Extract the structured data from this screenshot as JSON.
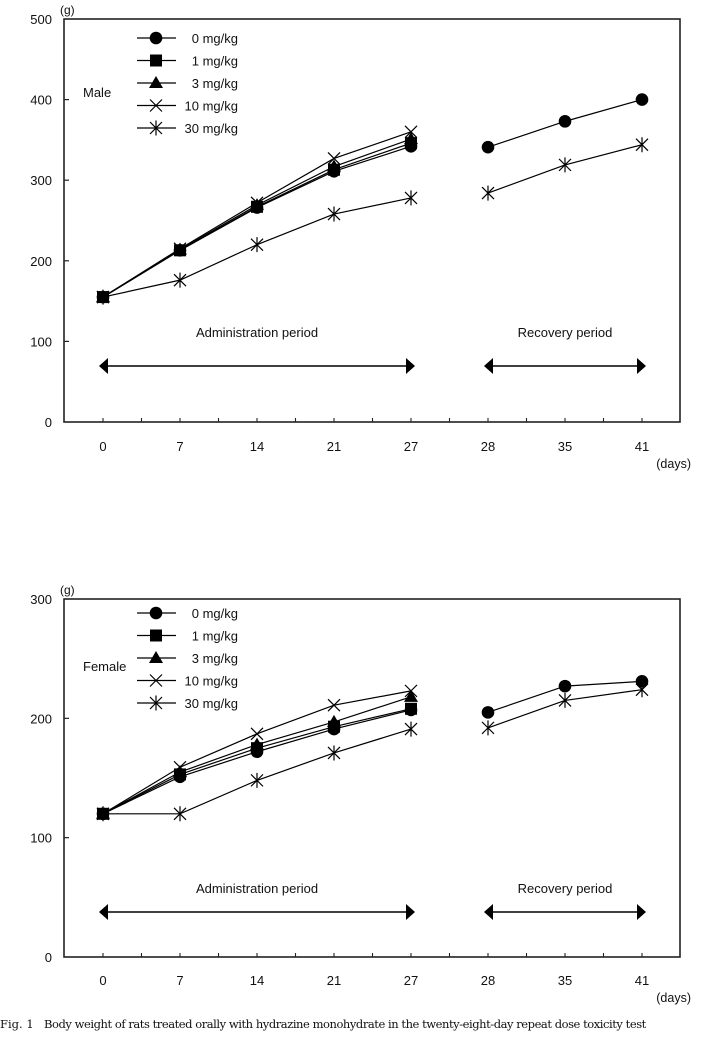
{
  "caption": {
    "label": "Fig. 1",
    "text": "Body weight of rats treated orally with hydrazine monohydrate in the twenty-eight-day repeat dose toxicity test"
  },
  "chart_data": [
    {
      "type": "line",
      "title": "Male",
      "ylabel": "(g)",
      "xlabel": "(days)",
      "ylim": [
        0,
        500
      ],
      "yticks": [
        "0",
        "100",
        "200",
        "300",
        "400",
        "500"
      ],
      "categories": [
        "0",
        "7",
        "14",
        "21",
        "27",
        "28",
        "35",
        "41"
      ],
      "legend_position": "top-left",
      "grid": false,
      "periods": [
        {
          "label": "Administration period",
          "from": "0",
          "to": "27"
        },
        {
          "label": "Recovery period",
          "from": "28",
          "to": "41"
        }
      ],
      "series": [
        {
          "name": "0 mg/kg",
          "marker": "circle",
          "values": [
            155,
            213,
            266,
            311,
            342,
            341,
            373,
            400
          ]
        },
        {
          "name": "1 mg/kg",
          "marker": "square",
          "values": [
            155,
            213,
            267,
            313,
            346,
            null,
            null,
            null
          ]
        },
        {
          "name": "3 mg/kg",
          "marker": "triangle",
          "values": [
            155,
            214,
            269,
            317,
            351,
            null,
            null,
            null
          ]
        },
        {
          "name": "10 mg/kg",
          "marker": "x",
          "values": [
            155,
            215,
            272,
            327,
            360,
            null,
            null,
            null
          ]
        },
        {
          "name": "30 mg/kg",
          "marker": "asterisk",
          "values": [
            155,
            176,
            220,
            258,
            278,
            284,
            319,
            344
          ]
        }
      ]
    },
    {
      "type": "line",
      "title": "Female",
      "ylabel": "(g)",
      "xlabel": "(days)",
      "ylim": [
        0,
        300
      ],
      "yticks": [
        "0",
        "100",
        "200",
        "300"
      ],
      "categories": [
        "0",
        "7",
        "14",
        "21",
        "27",
        "28",
        "35",
        "41"
      ],
      "legend_position": "top-left",
      "grid": false,
      "periods": [
        {
          "label": "Administration period",
          "from": "0",
          "to": "27"
        },
        {
          "label": "Recovery period",
          "from": "28",
          "to": "41"
        }
      ],
      "series": [
        {
          "name": "0 mg/kg",
          "marker": "circle",
          "values": [
            120,
            151,
            172,
            191,
            207,
            205,
            227,
            231
          ]
        },
        {
          "name": "1 mg/kg",
          "marker": "square",
          "values": [
            120,
            153,
            175,
            193,
            208,
            null,
            null,
            null
          ]
        },
        {
          "name": "3 mg/kg",
          "marker": "triangle",
          "values": [
            120,
            155,
            178,
            197,
            218,
            null,
            null,
            null
          ]
        },
        {
          "name": "10 mg/kg",
          "marker": "x",
          "values": [
            120,
            159,
            187,
            211,
            223,
            null,
            null,
            null
          ]
        },
        {
          "name": "30 mg/kg",
          "marker": "asterisk",
          "values": [
            120,
            120,
            148,
            171,
            191,
            192,
            215,
            224
          ]
        }
      ]
    }
  ]
}
